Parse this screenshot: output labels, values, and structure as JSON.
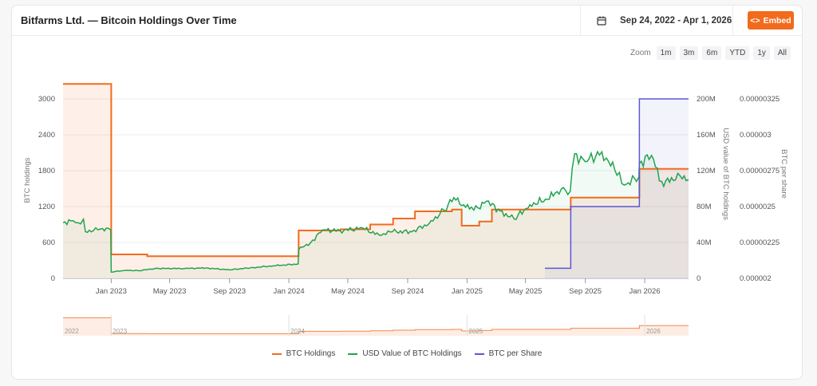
{
  "header": {
    "title": "Bitfarms Ltd. — Bitcoin Holdings Over Time",
    "date_range": "Sep 24, 2022 - Apr 1, 2026",
    "calendar_icon": "calendar-icon",
    "embed_label": "Embed",
    "embed_icon": "code-icon"
  },
  "zoom": {
    "label": "Zoom",
    "buttons": [
      "1m",
      "3m",
      "6m",
      "YTD",
      "1y",
      "All"
    ]
  },
  "colors": {
    "btc_holdings": "#f26b1d",
    "usd_value": "#22a350",
    "btc_per_share": "#5b57d6",
    "accent": "#f26b1d"
  },
  "legend": [
    {
      "label": "BTC Holdings",
      "color": "#f26b1d"
    },
    {
      "label": "USD Value of BTC Holdings",
      "color": "#22a350"
    },
    {
      "label": "BTC per Share",
      "color": "#5b57d6"
    }
  ],
  "chart_data": {
    "type": "line",
    "title": "Bitfarms Ltd. — Bitcoin Holdings Over Time",
    "x_ticks": [
      "Jan 2023",
      "May 2023",
      "Sep 2023",
      "Jan 2024",
      "May 2024",
      "Sep 2024",
      "Jan 2025",
      "May 2025",
      "Sep 2025",
      "Jan 2026"
    ],
    "x_range": [
      "2022-09-24",
      "2026-04-01"
    ],
    "y_axes": [
      {
        "label": "BTC holdings",
        "ticks": [
          "0",
          "600",
          "1200",
          "1800",
          "2400",
          "3000"
        ],
        "range": [
          0,
          3300
        ],
        "position": "left"
      },
      {
        "label": "USD value of BTC holdings",
        "ticks": [
          "0",
          "40M",
          "80M",
          "120M",
          "160M",
          "200M"
        ],
        "range": [
          0,
          200000000
        ],
        "position": "right"
      },
      {
        "label": "BTC per share",
        "ticks": [
          "0.000002",
          "0.00000225",
          "0.0000025",
          "0.00000275",
          "0.000003",
          "0.00000325"
        ],
        "range": [
          2e-06,
          3.25e-06
        ],
        "position": "right"
      }
    ],
    "navigator_labels": [
      "2022",
      "2023",
      "2024",
      "2025",
      "2026"
    ],
    "series": [
      {
        "name": "BTC Holdings",
        "step": true,
        "points": [
          [
            "2022-09-24",
            3250
          ],
          [
            "2022-12-31",
            3250
          ],
          [
            "2023-01-01",
            400
          ],
          [
            "2023-03-15",
            400
          ],
          [
            "2023-03-16",
            370
          ],
          [
            "2024-01-20",
            370
          ],
          [
            "2024-01-21",
            800
          ],
          [
            "2024-04-15",
            800
          ],
          [
            "2024-04-16",
            820
          ],
          [
            "2024-06-15",
            820
          ],
          [
            "2024-06-16",
            900
          ],
          [
            "2024-08-01",
            900
          ],
          [
            "2024-08-02",
            1000
          ],
          [
            "2024-09-15",
            1000
          ],
          [
            "2024-09-16",
            1120
          ],
          [
            "2024-11-30",
            1120
          ],
          [
            "2024-12-01",
            1150
          ],
          [
            "2024-12-20",
            1150
          ],
          [
            "2024-12-21",
            880
          ],
          [
            "2025-01-25",
            880
          ],
          [
            "2025-01-26",
            950
          ],
          [
            "2025-02-20",
            950
          ],
          [
            "2025-02-21",
            1150
          ],
          [
            "2025-08-01",
            1150
          ],
          [
            "2025-08-02",
            1350
          ],
          [
            "2025-12-20",
            1350
          ],
          [
            "2025-12-21",
            1830
          ],
          [
            "2026-04-01",
            1830
          ]
        ]
      },
      {
        "name": "USD Value of BTC Holdings",
        "unit": "USD",
        "points": [
          [
            "2022-09-24",
            62000000
          ],
          [
            "2022-10-10",
            64000000
          ],
          [
            "2022-10-25",
            62000000
          ],
          [
            "2022-11-05",
            66000000
          ],
          [
            "2022-11-09",
            52000000
          ],
          [
            "2022-11-25",
            53000000
          ],
          [
            "2022-12-10",
            55000000
          ],
          [
            "2022-12-31",
            54000000
          ],
          [
            "2023-01-01",
            7000000
          ],
          [
            "2023-02-01",
            9000000
          ],
          [
            "2023-03-01",
            8500000
          ],
          [
            "2023-04-01",
            11000000
          ],
          [
            "2023-06-01",
            11000000
          ],
          [
            "2023-07-15",
            11500000
          ],
          [
            "2023-09-01",
            9500000
          ],
          [
            "2023-10-20",
            12000000
          ],
          [
            "2023-12-01",
            14000000
          ],
          [
            "2024-01-20",
            16000000
          ],
          [
            "2024-01-21",
            32000000
          ],
          [
            "2024-02-15",
            40000000
          ],
          [
            "2024-03-10",
            54000000
          ],
          [
            "2024-04-15",
            53000000
          ],
          [
            "2024-06-01",
            56000000
          ],
          [
            "2024-07-05",
            48000000
          ],
          [
            "2024-08-01",
            52000000
          ],
          [
            "2024-09-10",
            52000000
          ],
          [
            "2024-10-15",
            61000000
          ],
          [
            "2024-11-15",
            76000000
          ],
          [
            "2024-12-05",
            90000000
          ],
          [
            "2024-12-25",
            82000000
          ],
          [
            "2025-01-15",
            76000000
          ],
          [
            "2025-02-10",
            86000000
          ],
          [
            "2025-03-10",
            75000000
          ],
          [
            "2025-04-08",
            66000000
          ],
          [
            "2025-05-10",
            82000000
          ],
          [
            "2025-06-15",
            88000000
          ],
          [
            "2025-07-14",
            100000000
          ],
          [
            "2025-08-01",
            97000000
          ],
          [
            "2025-08-10",
            139000000
          ],
          [
            "2025-09-01",
            130000000
          ],
          [
            "2025-10-05",
            141000000
          ],
          [
            "2025-11-01",
            120000000
          ],
          [
            "2025-11-20",
            104000000
          ],
          [
            "2025-12-20",
            113000000
          ],
          [
            "2025-12-21",
            128000000
          ],
          [
            "2026-01-15",
            137000000
          ],
          [
            "2026-02-05",
            108000000
          ],
          [
            "2026-03-01",
            109000000
          ],
          [
            "2026-03-15",
            114000000
          ],
          [
            "2026-04-01",
            110000000
          ]
        ]
      },
      {
        "name": "BTC per Share",
        "step": true,
        "points": [
          [
            "2025-06-10",
            2.07e-06
          ],
          [
            "2025-08-01",
            2.07e-06
          ],
          [
            "2025-08-02",
            2.5e-06
          ],
          [
            "2025-12-20",
            2.5e-06
          ],
          [
            "2025-12-21",
            3.25e-06
          ],
          [
            "2026-04-01",
            3.25e-06
          ]
        ]
      }
    ]
  }
}
